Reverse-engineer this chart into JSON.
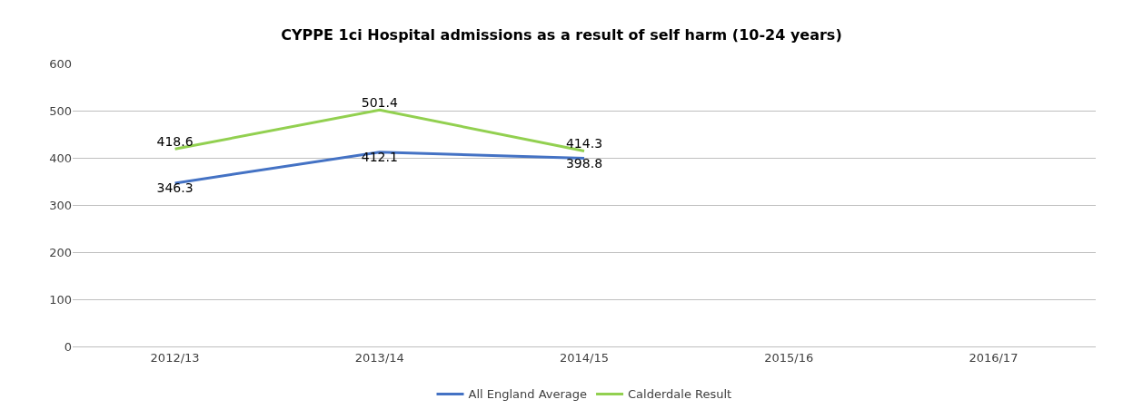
{
  "chart_data": {
    "type": "line",
    "title": "CYPPE 1ci Hospital admissions as a result of self harm (10-24 years)",
    "categories": [
      "2012/13",
      "2013/14",
      "2014/15",
      "2015/16",
      "2016/17"
    ],
    "series": [
      {
        "name": "All England Average",
        "color": "#4472c4",
        "values": [
          346.3,
          412.1,
          398.8,
          null,
          null
        ]
      },
      {
        "name": "Calderdale Result",
        "color": "#92d050",
        "values": [
          418.6,
          501.4,
          414.3,
          null,
          null
        ]
      }
    ],
    "ylim": [
      0,
      600
    ],
    "yticks": [
      0,
      100,
      200,
      300,
      400,
      500,
      600
    ],
    "grid": "y",
    "legend": "bottom",
    "data_labels": true,
    "marker": "none",
    "line_style": "solid"
  }
}
